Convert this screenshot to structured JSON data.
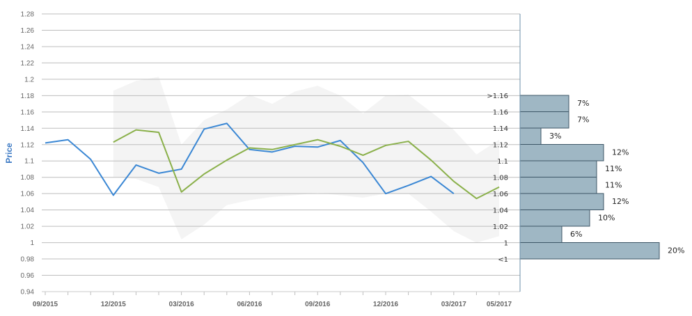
{
  "chart_data": {
    "type": "line",
    "ylabel": "Price",
    "ylim": [
      0.94,
      1.28
    ],
    "y_ticks": [
      "0.94",
      "0.96",
      "0.98",
      "1",
      "1.02",
      "1.04",
      "1.06",
      "1.08",
      "1.1",
      "1.12",
      "1.14",
      "1.16",
      "1.18",
      "1.2",
      "1.22",
      "1.24",
      "1.26",
      "1.28"
    ],
    "x_ticks": [
      "09/2015",
      "12/2015",
      "03/2016",
      "06/2016",
      "09/2016",
      "12/2016",
      "03/2017",
      "05/2017"
    ],
    "months": [
      "09/2015",
      "10/2015",
      "11/2015",
      "12/2015",
      "01/2016",
      "02/2016",
      "03/2016",
      "04/2016",
      "05/2016",
      "06/2016",
      "07/2016",
      "08/2016",
      "09/2016",
      "10/2016",
      "11/2016",
      "12/2016",
      "01/2017",
      "02/2017",
      "03/2017",
      "04/2017",
      "05/2017"
    ],
    "series": [
      {
        "color": "#3a87d4",
        "values": [
          1.122,
          1.126,
          1.102,
          1.058,
          1.095,
          1.085,
          1.09,
          1.139,
          1.146,
          1.114,
          1.111,
          1.118,
          1.117,
          1.125,
          1.098,
          1.06,
          1.07,
          1.081,
          1.06,
          null,
          null
        ]
      },
      {
        "color": "#8ab04a",
        "values": [
          null,
          null,
          null,
          1.123,
          1.138,
          1.135,
          1.062,
          1.084,
          1.101,
          1.116,
          1.114,
          1.12,
          1.126,
          1.118,
          1.107,
          1.119,
          1.124,
          1.101,
          1.075,
          1.054,
          1.068
        ]
      }
    ],
    "band": {
      "color": "#f4f4f4",
      "upper": [
        null,
        null,
        null,
        1.186,
        1.198,
        1.203,
        1.12,
        1.15,
        1.163,
        1.181,
        1.17,
        1.185,
        1.192,
        1.18,
        1.158,
        1.18,
        1.181,
        1.16,
        1.138,
        1.108,
        1.126
      ],
      "lower": [
        null,
        null,
        null,
        1.08,
        1.078,
        1.068,
        1.004,
        1.022,
        1.046,
        1.052,
        1.056,
        1.058,
        1.061,
        1.058,
        1.055,
        1.06,
        1.06,
        1.038,
        1.014,
        1.0,
        1.008
      ]
    },
    "distribution": {
      "color": "#9fb7c4",
      "bins": [
        {
          "label": ">1.16",
          "pct": "7%",
          "value": 7
        },
        {
          "label": "1.16",
          "pct": "7%",
          "value": 7
        },
        {
          "label": "1.14",
          "pct": "3%",
          "value": 3
        },
        {
          "label": "1.12",
          "pct": "12%",
          "value": 12
        },
        {
          "label": "1.1",
          "pct": "11%",
          "value": 11
        },
        {
          "label": "1.08",
          "pct": "11%",
          "value": 11
        },
        {
          "label": "1.06",
          "pct": "12%",
          "value": 12
        },
        {
          "label": "1.04",
          "pct": "10%",
          "value": 10
        },
        {
          "label": "1.02",
          "pct": "6%",
          "value": 6
        },
        {
          "label": "1",
          "pct": "20%",
          "value": 20
        },
        {
          "label": "<1",
          "pct": "",
          "value": 0
        }
      ]
    }
  }
}
